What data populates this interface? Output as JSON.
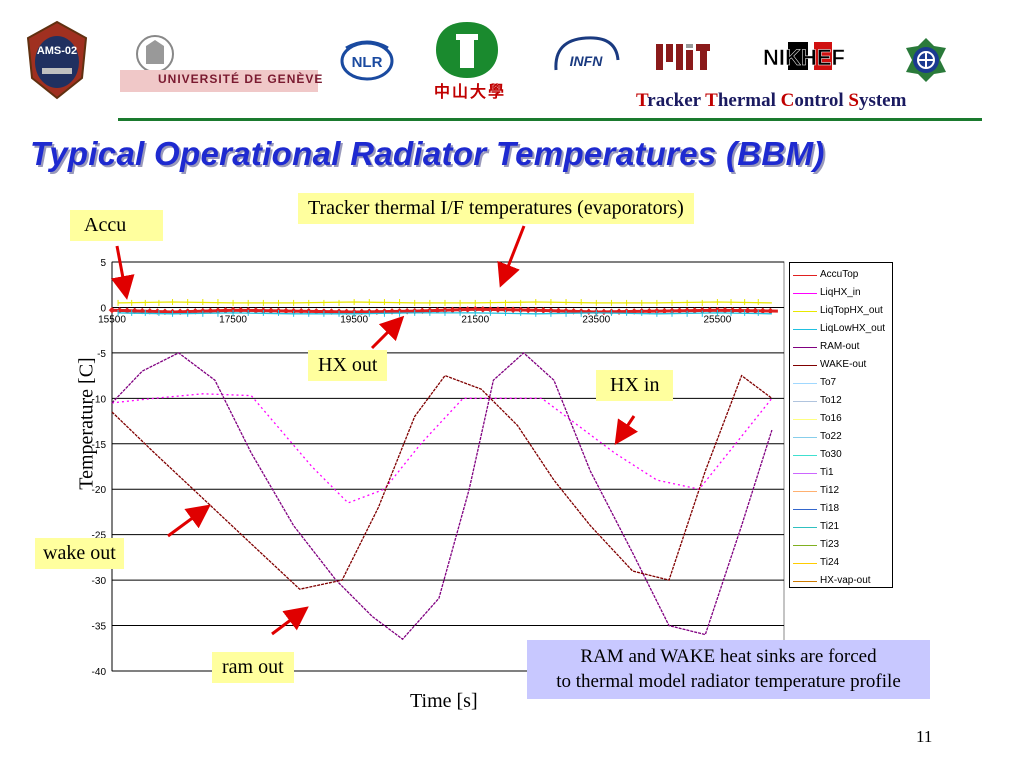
{
  "header": {
    "logos": [
      {
        "name": "AMS-02",
        "text": "AMS-02"
      },
      {
        "name": "Université de Genève",
        "text": "UNIVERSITÉ DE GENÈVE"
      },
      {
        "name": "NLR",
        "text": "NLR"
      },
      {
        "name": "Sun Yat-sen University",
        "text": "中山大學"
      },
      {
        "name": "INFN",
        "text": "INFN"
      },
      {
        "name": "MIT",
        "text": "MIT"
      },
      {
        "name": "NIKHEF",
        "text": "NIKHEF"
      },
      {
        "name": "Academia Sinica",
        "text": ""
      }
    ],
    "subtitle_words": [
      {
        "cap": "T",
        "rest": "racker "
      },
      {
        "cap": "T",
        "rest": "hermal "
      },
      {
        "cap": "C",
        "rest": "ontrol "
      },
      {
        "cap": "S",
        "rest": "ystem"
      }
    ]
  },
  "slide": {
    "title": "Typical Operational Radiator Temperatures (BBM)",
    "page_number": "11",
    "note": [
      "RAM and WAKE heat sinks are forced",
      "to thermal model radiator temperature profile"
    ]
  },
  "colors": {
    "title": "#1e2ad0",
    "header_rule": "#1a7a2e",
    "callout_bg": "#ffff9e",
    "note_bg": "#c8c8ff",
    "arrow": "#e00000"
  },
  "callouts": [
    {
      "id": "accu",
      "text": "Accu"
    },
    {
      "id": "tracker",
      "text": "Tracker thermal I/F temperatures (evaporators)"
    },
    {
      "id": "hx-out",
      "text": "HX out"
    },
    {
      "id": "hx-in",
      "text": "HX in"
    },
    {
      "id": "wake-out",
      "text": "wake out"
    },
    {
      "id": "ram-out",
      "text": "ram out"
    }
  ],
  "chart_data": {
    "type": "line",
    "xlabel": "Time [s]",
    "ylabel": "Temperature [C]",
    "xlim": [
      15500,
      26600
    ],
    "ylim": [
      -40,
      5
    ],
    "x_ticks": [
      "15500",
      "17500",
      "19500",
      "21500",
      "23500",
      "25500"
    ],
    "y_ticks": [
      "5",
      "0",
      "-5",
      "-10",
      "-15",
      "-20",
      "-25",
      "-30",
      "-35",
      "-40"
    ],
    "grid": true,
    "legend_position": "right",
    "series": [
      {
        "name": "AccuTop",
        "color": "#e02020",
        "marker": "diamond",
        "x": [
          15500,
          16500,
          17500,
          18500,
          19500,
          20500,
          21500,
          22500,
          23500,
          24500,
          25500,
          26500
        ],
        "y": [
          -0.3,
          -0.5,
          -0.3,
          -0.4,
          -0.5,
          -0.4,
          -0.2,
          -0.3,
          -0.5,
          -0.4,
          -0.3,
          -0.4
        ]
      },
      {
        "name": "LiqHX_in",
        "color": "#ff00ff",
        "x": [
          15500,
          16200,
          17000,
          17800,
          18800,
          19400,
          20000,
          20600,
          21300,
          22000,
          22600,
          23200,
          23800,
          24500,
          25200,
          25800,
          26400
        ],
        "y": [
          -10.5,
          -10,
          -9.5,
          -9.7,
          -17.5,
          -21.5,
          -20,
          -15,
          -10,
          -10,
          -10,
          -13,
          -16,
          -19,
          -20,
          -15,
          -10
        ]
      },
      {
        "name": "LiqTopHX_out",
        "color": "#e8e800",
        "x": [
          15600,
          16500,
          17500,
          18500,
          19500,
          20500,
          21500,
          22500,
          23500,
          24500,
          25500,
          26400
        ],
        "y": [
          0.5,
          0.6,
          0.5,
          0.5,
          0.6,
          0.5,
          0.5,
          0.6,
          0.5,
          0.5,
          0.6,
          0.5
        ]
      },
      {
        "name": "LiqLowHX_out",
        "color": "#20c0e0",
        "x": [
          15600,
          16500,
          17500,
          18500,
          19500,
          20500,
          21500,
          22500,
          23500,
          24500,
          25500,
          26400
        ],
        "y": [
          -0.6,
          -0.7,
          -0.6,
          -0.7,
          -0.7,
          -0.6,
          -0.6,
          -0.7,
          -0.6,
          -0.7,
          -0.6,
          -0.7
        ]
      },
      {
        "name": "RAM-out",
        "color": "#800080",
        "x": [
          15500,
          16000,
          16600,
          17200,
          17800,
          18500,
          19200,
          19800,
          20300,
          20900,
          21400,
          21800,
          22300,
          22800,
          23400,
          24100,
          24700,
          25300,
          25900,
          26400
        ],
        "y": [
          -10.5,
          -7,
          -5,
          -8,
          -16,
          -24,
          -30,
          -34,
          -36.5,
          -32,
          -20,
          -8,
          -5,
          -8,
          -18,
          -27,
          -35,
          -36,
          -24,
          -13.5
        ]
      },
      {
        "name": "WAKE-out",
        "color": "#800000",
        "x": [
          15500,
          16200,
          17000,
          17800,
          18600,
          19300,
          19900,
          20500,
          21000,
          21600,
          22200,
          22800,
          23400,
          24100,
          24700,
          25300,
          25900,
          26400
        ],
        "y": [
          -11.5,
          -16,
          -21,
          -26,
          -31,
          -30,
          -22,
          -12,
          -7.5,
          -9,
          -13,
          -19,
          -24,
          -29,
          -30,
          -18,
          -7.5,
          -10
        ]
      },
      {
        "name": "To7",
        "color": "#a0d8ff",
        "x": [],
        "y": []
      },
      {
        "name": "To12",
        "color": "#b0c4de",
        "x": [],
        "y": []
      },
      {
        "name": "To16",
        "color": "#ffff80",
        "x": [],
        "y": []
      },
      {
        "name": "To22",
        "color": "#87ceeb",
        "x": [],
        "y": []
      },
      {
        "name": "To30",
        "color": "#40e0d0",
        "x": [],
        "y": []
      },
      {
        "name": "Ti1",
        "color": "#cc66ff",
        "x": [],
        "y": []
      },
      {
        "name": "Ti12",
        "color": "#ffb070",
        "x": [],
        "y": []
      },
      {
        "name": "Ti18",
        "color": "#3366cc",
        "x": [],
        "y": []
      },
      {
        "name": "Ti21",
        "color": "#30c0c0",
        "x": [],
        "y": []
      },
      {
        "name": "Ti23",
        "color": "#80b020",
        "x": [],
        "y": []
      },
      {
        "name": "Ti24",
        "color": "#ffcc00",
        "x": [],
        "y": []
      },
      {
        "name": "HX-vap-out",
        "color": "#cc7a00",
        "x": [],
        "y": []
      }
    ]
  }
}
